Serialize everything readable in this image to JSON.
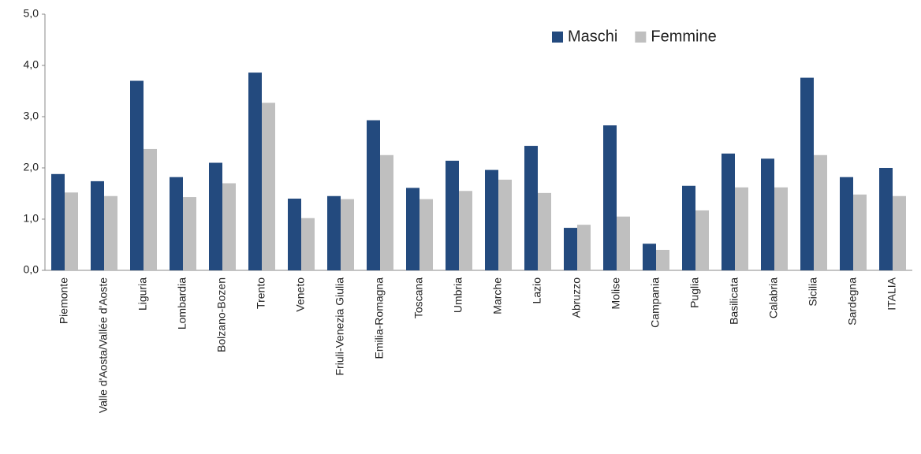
{
  "chart_data": {
    "type": "bar",
    "categories": [
      "Piemonte",
      "Valle d'Aosta/Vallée d'Aoste",
      "Liguria",
      "Lombardia",
      "Bolzano-Bozen",
      "Trento",
      "Veneto",
      "Friuli-Venezia Giulia",
      "Emilia-Romagna",
      "Toscana",
      "Umbria",
      "Marche",
      "Lazio",
      "Abruzzo",
      "Molise",
      "Campania",
      "Puglia",
      "Basilicata",
      "Calabria",
      "Sicilia",
      "Sardegna",
      "ITALIA"
    ],
    "series": [
      {
        "name": "Maschi",
        "color": "#234a7e",
        "values": [
          1.88,
          1.74,
          3.7,
          1.82,
          2.1,
          3.86,
          1.4,
          1.45,
          2.93,
          1.61,
          2.14,
          1.96,
          2.43,
          0.83,
          2.83,
          0.52,
          1.65,
          2.28,
          2.18,
          3.76,
          1.82,
          2.0
        ]
      },
      {
        "name": "Femmine",
        "color": "#bfbfbf",
        "values": [
          1.52,
          1.45,
          2.37,
          1.43,
          1.7,
          3.27,
          1.02,
          1.39,
          2.25,
          1.39,
          1.55,
          1.77,
          1.51,
          0.89,
          1.05,
          0.4,
          1.17,
          1.62,
          1.62,
          2.25,
          1.48,
          1.45
        ]
      }
    ],
    "ylim": [
      0,
      5
    ],
    "yticks": [
      {
        "value": 0,
        "label": "0,0"
      },
      {
        "value": 1,
        "label": "1,0"
      },
      {
        "value": 2,
        "label": "2,0"
      },
      {
        "value": 3,
        "label": "3,0"
      },
      {
        "value": 4,
        "label": "4,0"
      },
      {
        "value": 5,
        "label": "5,0"
      }
    ],
    "legend": "upper right",
    "grid": false
  }
}
